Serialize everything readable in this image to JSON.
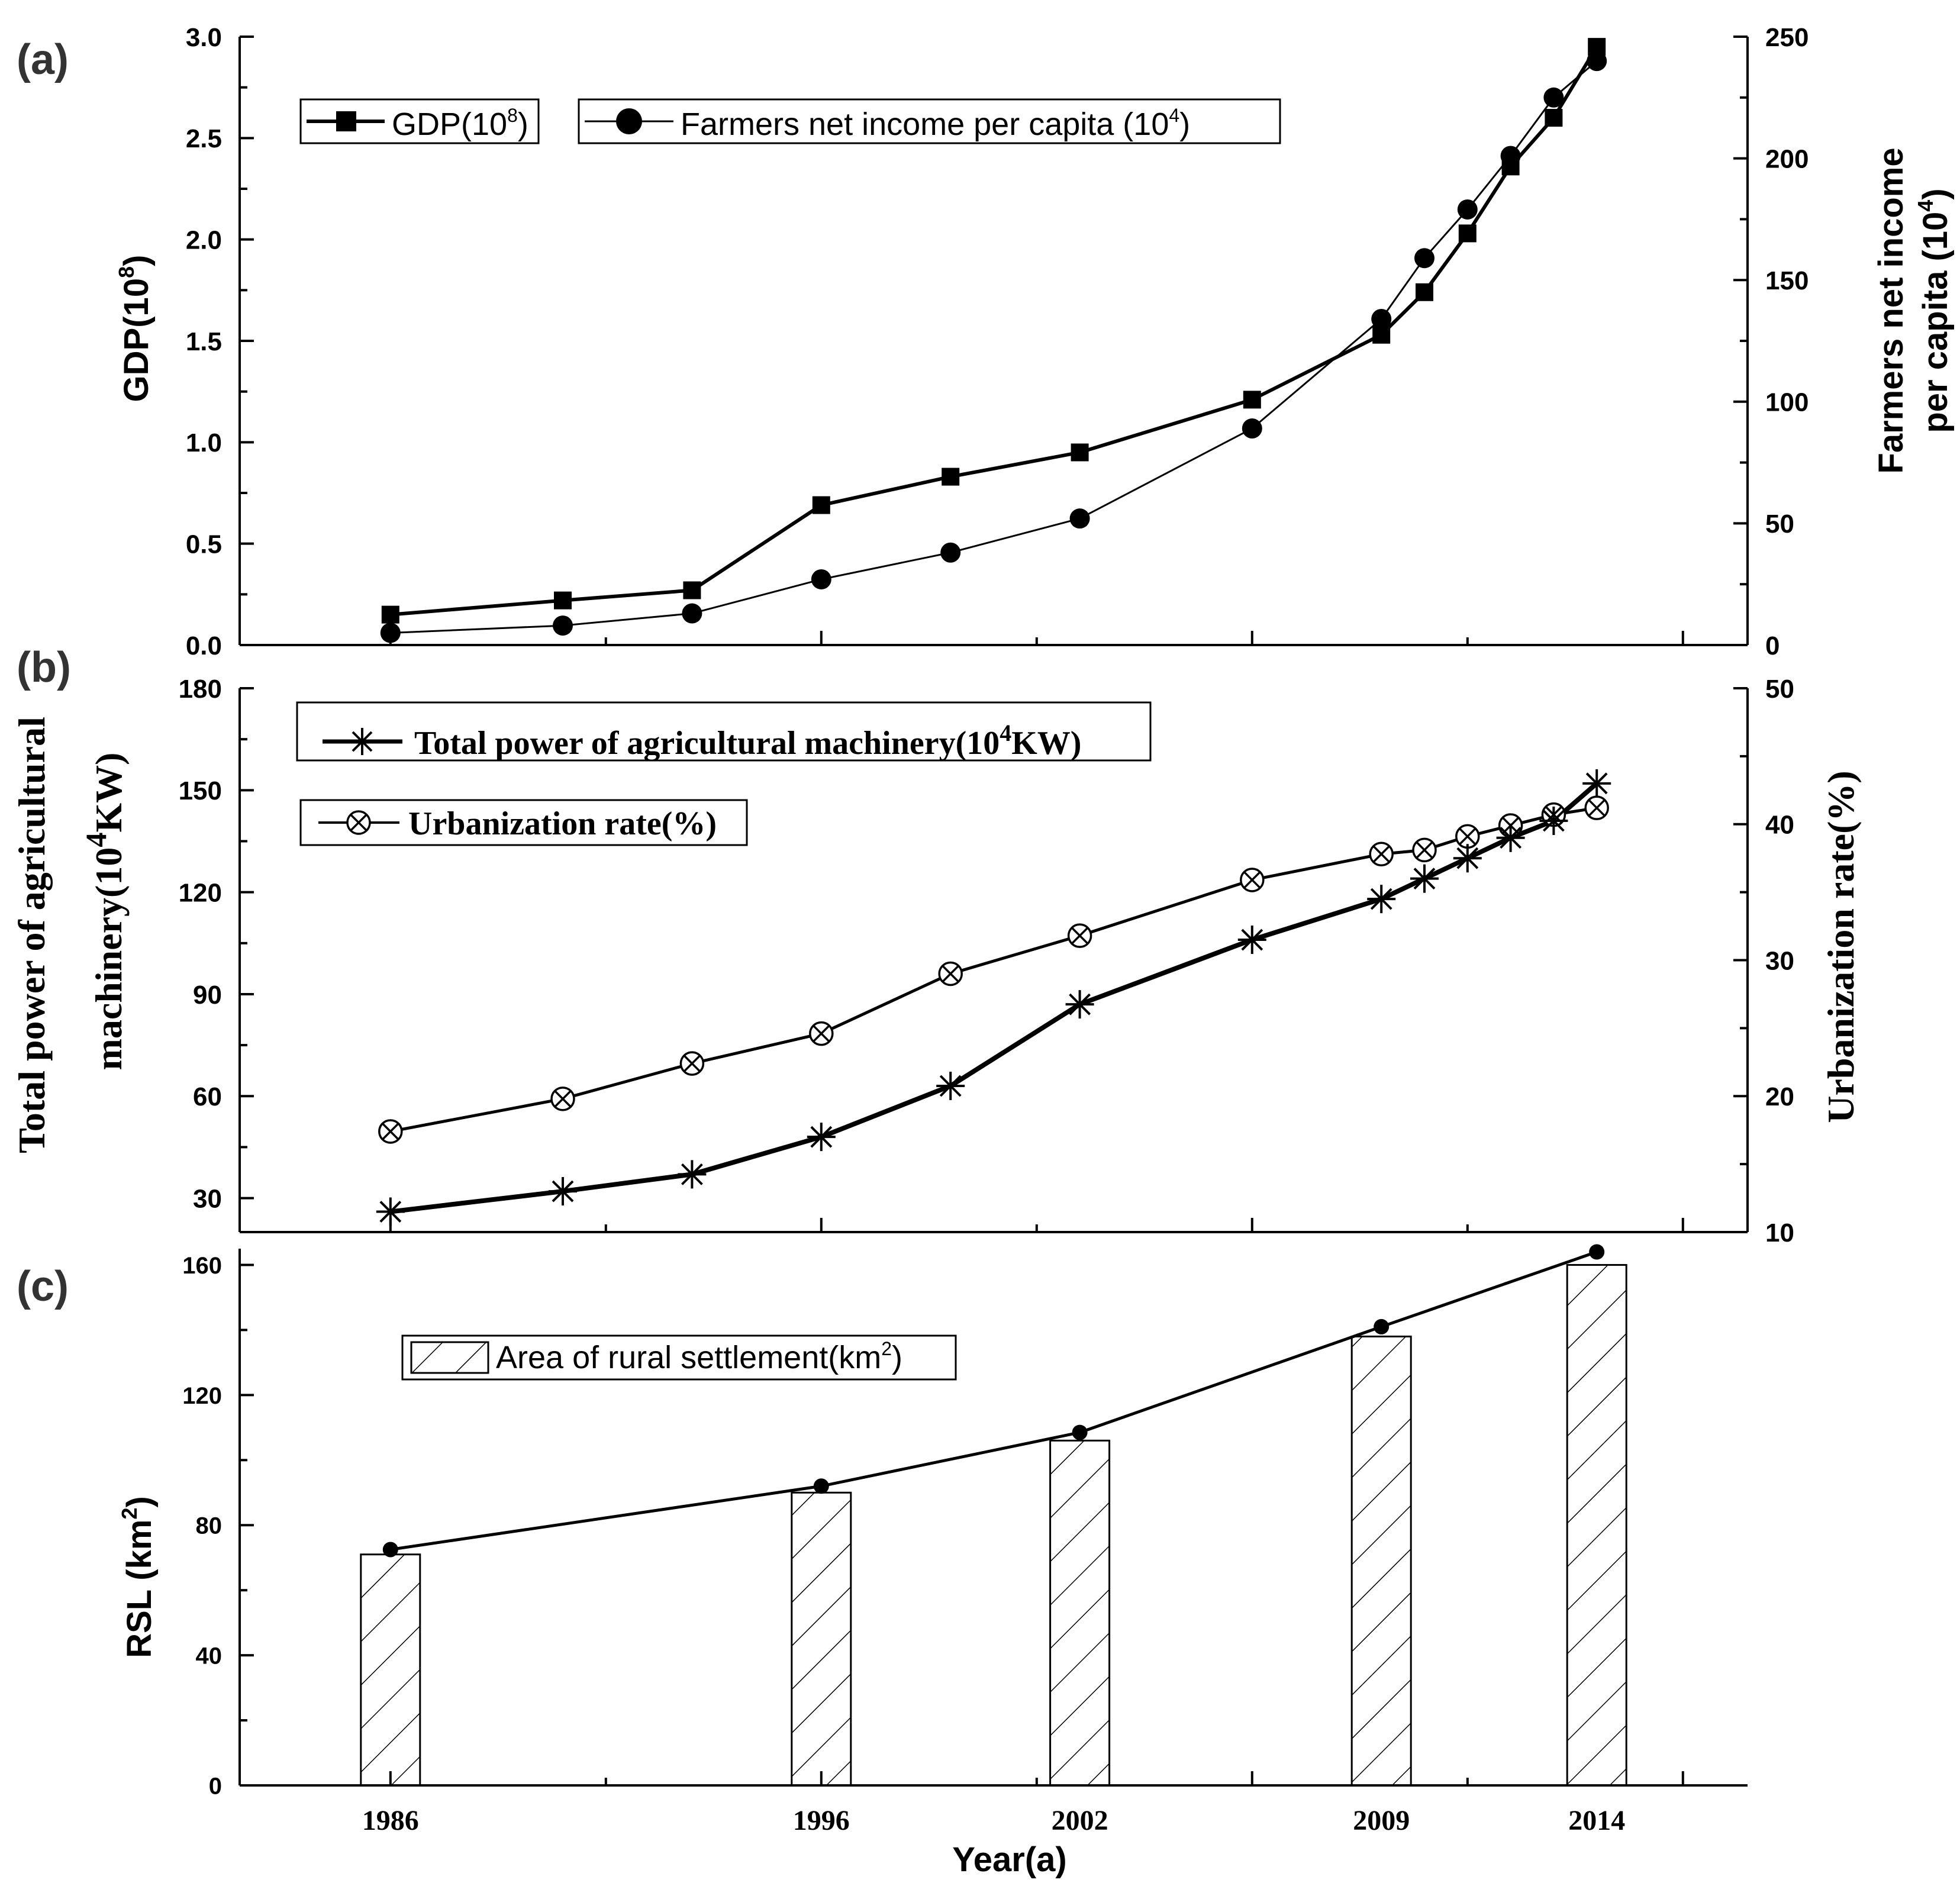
{
  "chart_data": [
    {
      "panel_label": "(a)",
      "type": "line",
      "x": [
        1986,
        1990,
        1993,
        1996,
        1999,
        2002,
        2006,
        2009,
        2010,
        2011,
        2012,
        2013,
        2014
      ],
      "xlim": [
        1982.5,
        2017.5
      ],
      "series": [
        {
          "name": "GDP(10^8)",
          "legend_text": "GDP(10",
          "legend_sup": "8",
          "legend_close": ")",
          "axis": "left",
          "marker": "square",
          "values": [
            0.15,
            0.22,
            0.27,
            0.69,
            0.83,
            0.95,
            1.21,
            1.53,
            1.74,
            2.03,
            2.36,
            2.6,
            2.95
          ]
        },
        {
          "name": "Farmers net income per capita (10^4)",
          "legend_text": "Farmers net income per capita (10",
          "legend_sup": "4",
          "legend_close": ")",
          "axis": "right",
          "marker": "circle",
          "values": [
            5,
            8,
            13,
            27,
            38,
            52,
            89,
            134,
            159,
            179,
            201,
            225,
            240
          ]
        }
      ],
      "ylabel": {
        "text": "GDP(10",
        "sup": "8",
        "close": ")"
      },
      "ylim": [
        0,
        3.0
      ],
      "yticks": [
        "0.0",
        "0.5",
        "1.0",
        "1.5",
        "2.0",
        "2.5",
        "3.0"
      ],
      "y2label": {
        "line1": "Farmers net income",
        "line2": "per capita (10",
        "sup": "4",
        "close": ")"
      },
      "y2lim": [
        0,
        250
      ],
      "y2ticks": [
        "0",
        "50",
        "100",
        "150",
        "200",
        "250"
      ],
      "grid": false
    },
    {
      "panel_label": "(b)",
      "type": "line",
      "x": [
        1986,
        1990,
        1993,
        1996,
        1999,
        2002,
        2006,
        2009,
        2010,
        2011,
        2012,
        2013,
        2014
      ],
      "xlim": [
        1982.5,
        2017.5
      ],
      "series": [
        {
          "name": "Total power of agricultural machinery(10^4KW)",
          "legend_text": "Total power of agricultural machinery(10",
          "legend_sup": "4",
          "legend_close": "KW)",
          "axis": "left",
          "marker": "asterisk",
          "values": [
            26,
            32,
            37,
            48,
            63,
            87,
            106,
            118,
            124,
            130,
            136,
            141,
            152
          ]
        },
        {
          "name": "Urbanization rate(%)",
          "legend_text": "Urbanization rate(%)",
          "axis": "right",
          "marker": "circled-x",
          "values": [
            17.4,
            19.8,
            22.4,
            24.6,
            29,
            31.8,
            35.9,
            37.8,
            38.1,
            39.1,
            39.9,
            40.7,
            41.2
          ]
        }
      ],
      "ylabel": {
        "line1": "Total power of agricultural",
        "line2": "machinery(10",
        "sup": "4",
        "close": "KW)"
      },
      "ylim": [
        20,
        180
      ],
      "yticks": [
        "30",
        "60",
        "90",
        "120",
        "150",
        "180"
      ],
      "y2label": "Urbanization rate(%)",
      "y2lim": [
        10,
        50
      ],
      "y2ticks": [
        "10",
        "20",
        "30",
        "40",
        "50"
      ],
      "grid": false
    },
    {
      "panel_label": "(c)",
      "type": "bar",
      "categories": [
        "1986",
        "1996",
        "2002",
        "2009",
        "2014"
      ],
      "x": [
        1986,
        1996,
        2002,
        2009,
        2014
      ],
      "xlim": [
        1982.5,
        2017.5
      ],
      "series": [
        {
          "name": "Area of rural settlement(km^2)",
          "legend_text": "Area of rural settlement(km",
          "legend_sup": "2",
          "legend_close": ")",
          "values": [
            71,
            90,
            106,
            138,
            160
          ]
        },
        {
          "name": "RSL trend",
          "marker": "circle",
          "values": [
            72.5,
            92,
            108.5,
            141,
            164
          ]
        }
      ],
      "ylabel": {
        "text": "RSL  (km",
        "sup": "2",
        "close": ")"
      },
      "ylim": [
        0,
        165
      ],
      "yticks": [
        "0",
        "40",
        "80",
        "120",
        "160"
      ],
      "xlabel": "Year(a)",
      "xticklabels": [
        "1986",
        "1996",
        "2002",
        "2009",
        "2014"
      ],
      "grid": false
    }
  ]
}
